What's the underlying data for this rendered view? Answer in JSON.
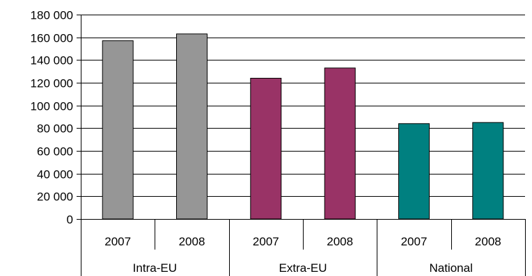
{
  "chart_data": {
    "type": "bar",
    "groups": [
      "Intra-EU",
      "Extra-EU",
      "National"
    ],
    "categories": [
      "2007",
      "2008",
      "2007",
      "2008",
      "2007",
      "2008"
    ],
    "values": [
      157000,
      163000,
      124000,
      133000,
      84000,
      85000
    ],
    "group_colors": [
      "#969696",
      "#993366",
      "#008080"
    ],
    "ylim": [
      0,
      180000
    ],
    "ytick_labels": [
      "0",
      "20 000",
      "40 000",
      "60 000",
      "80 000",
      "100 000",
      "120 000",
      "140 000",
      "160 000",
      "180 000"
    ],
    "grid": true,
    "legend": false,
    "title": "",
    "xlabel": "",
    "ylabel": ""
  }
}
